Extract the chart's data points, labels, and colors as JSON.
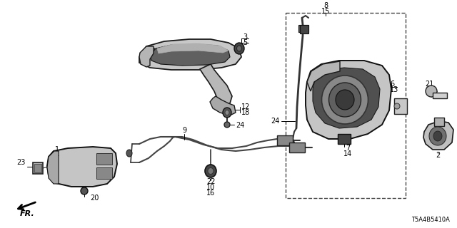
{
  "part_number": "T5A4B5410A",
  "bg_color": "#ffffff",
  "fig_width": 6.4,
  "fig_height": 3.2,
  "dpi": 100,
  "font_size": 7.0,
  "text_color": "#000000",
  "line_color": "#333333",
  "component_color": "#404040"
}
